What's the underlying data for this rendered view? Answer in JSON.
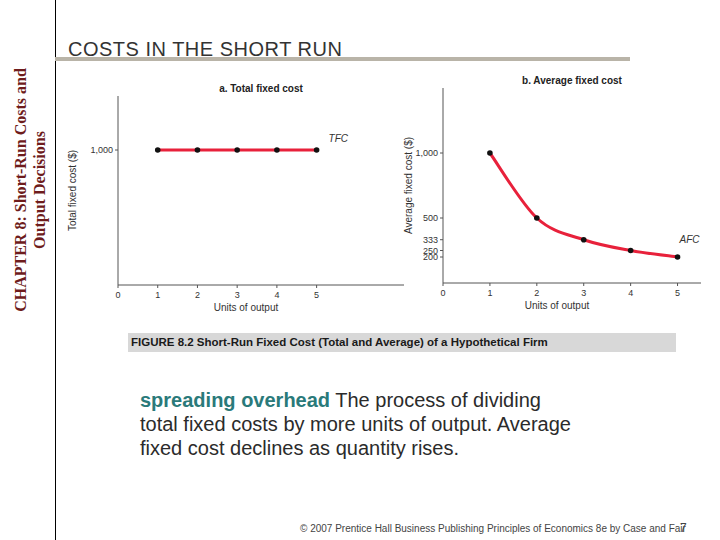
{
  "slide": {
    "title": "COSTS IN THE SHORT RUN",
    "side_text": [
      "CHAPTER 8:  Short-Run Costs and",
      "Output Decisions"
    ],
    "caption": "FIGURE 8.2  Short-Run Fixed Cost (Total and Average) of a Hypothetical Firm",
    "definition": {
      "term": "spreading overhead",
      "text": "The process of dividing total fixed costs by more units of output.  Average fixed cost declines as quantity rises."
    },
    "footer": "© 2007 Prentice Hall Business Publishing   Principles of Economics 8e by Case and Fair",
    "page": 7
  },
  "chart_data": [
    {
      "type": "line",
      "title": "a. Total fixed cost",
      "x_label": "Units of output",
      "y_label": "Total fixed cost ($)",
      "x": [
        1,
        2,
        3,
        4,
        5
      ],
      "series": [
        {
          "name": "TFC",
          "color": "#e8213b",
          "marker": "circle",
          "values": [
            1000,
            1000,
            1000,
            1000,
            1000
          ]
        }
      ],
      "xlim": [
        0,
        7.2
      ],
      "ylim": [
        0,
        1400
      ],
      "xticks": [
        0,
        1,
        2,
        3,
        4,
        5
      ],
      "yticks": [
        {
          "value": 1000,
          "label": "1,000"
        }
      ],
      "grid": false
    },
    {
      "type": "line",
      "title": "b. Average fixed cost",
      "x_label": "Units of output",
      "y_label": "Average fixed cost ($)",
      "x": [
        1,
        2,
        3,
        4,
        5
      ],
      "series": [
        {
          "name": "AFC",
          "color": "#e8213b",
          "marker": "circle",
          "values": [
            1000,
            500,
            333,
            250,
            200
          ]
        }
      ],
      "xlim": [
        0,
        5.5
      ],
      "ylim": [
        0,
        1500
      ],
      "xticks": [
        0,
        1,
        2,
        3,
        4,
        5
      ],
      "yticks": [
        {
          "value": 1000,
          "label": "1,000"
        },
        500,
        333,
        250,
        200
      ],
      "grid": false
    }
  ]
}
